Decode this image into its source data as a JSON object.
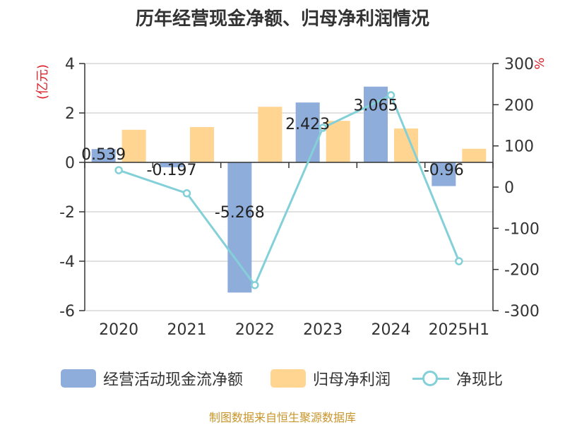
{
  "title": "历年经营现金净额、归母净利润情况",
  "source": "制图数据来自恒生聚源数据库",
  "colors": {
    "cash_flow": "#8eaddb",
    "net_profit": "#ffd591",
    "ratio": "#83d0d8",
    "left_unit": "#d9242b",
    "right_unit": "#d9242b"
  },
  "chart_data": {
    "type": "bar",
    "title": "历年经营现金净额、归母净利润情况",
    "categories": [
      "2020",
      "2021",
      "2022",
      "2023",
      "2024",
      "2025H1"
    ],
    "left_axis": {
      "unit": "(亿元)",
      "ylim": [
        -6,
        4
      ],
      "ticks": [
        "4",
        "2",
        "0",
        "-2",
        "-4",
        "-6"
      ]
    },
    "right_axis": {
      "unit": "%",
      "ylim": [
        -300,
        300
      ],
      "ticks": [
        "300",
        "200",
        "100",
        "0",
        "-100",
        "-200",
        "-300"
      ]
    },
    "series": [
      {
        "name": "经营活动现金流净额",
        "type": "bar",
        "axis": "left",
        "values": [
          0.539,
          -0.197,
          -5.268,
          2.423,
          3.065,
          -0.96
        ],
        "labels": [
          "0.539",
          "-0.197",
          "-5.268",
          "2.423",
          "3.065",
          "-0.96"
        ]
      },
      {
        "name": "归母净利润",
        "type": "bar",
        "axis": "left",
        "values": [
          1.32,
          1.43,
          2.25,
          1.68,
          1.37,
          0.55
        ]
      },
      {
        "name": "净现比",
        "type": "line",
        "axis": "right",
        "values": [
          41,
          -15,
          -238,
          144,
          223,
          -180
        ]
      }
    ],
    "grid": true,
    "legend_position": "bottom"
  }
}
